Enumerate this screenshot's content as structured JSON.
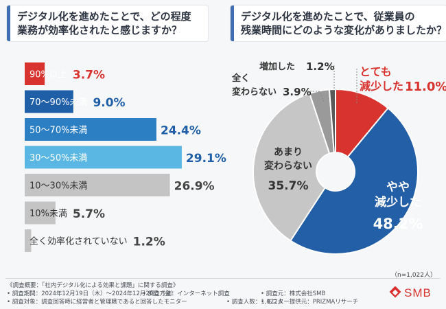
{
  "left_question": {
    "line1": "デジタル化を進めたことで、どの程度",
    "line2": "業務が効率化されたと感じますか？"
  },
  "right_question": {
    "line1": "デジタル化を進めたことで、従業員の",
    "line2": "残業時間にどのような変化がありましたか？"
  },
  "sample_size": "（n=1,022人）",
  "footer": {
    "title": "《調査概要：「社内デジタル化による効果と課題」に関する調査》",
    "period": "• 調査期間：2024年12月19日（木）〜2024年12月20日（金）",
    "target": "• 調査対象：調査回答時に経営者と管理職であると回答したモニター",
    "method": "• 調査方法：インターネット調査",
    "count": "• 調査人数：1,022人",
    "org": "• 調査元：株式会社SMB",
    "provider": "• モニター提供元：PRIZMAリサーチ"
  },
  "logo_text": "SMB",
  "chart_data": [
    {
      "type": "bar",
      "orientation": "horizontal",
      "title": "デジタル化を進めたことで、どの程度業務が効率化されたと感じますか？",
      "categories": [
        "90%以上",
        "70〜90%未満",
        "50〜70%未満",
        "30〜50%未満",
        "10〜30%未満",
        "10%未満",
        "全く効率化されていない"
      ],
      "values": [
        3.7,
        9.0,
        24.4,
        29.1,
        26.9,
        5.7,
        1.2
      ],
      "value_labels": [
        "3.7%",
        "9.0%",
        "24.4%",
        "29.1%",
        "26.9%",
        "5.7%",
        "1.2%"
      ],
      "colors": [
        "#d8332f",
        "#1f5fa8",
        "#2d7fc4",
        "#5ab7e3",
        "#c4c4c4",
        "#c4c4c4",
        "#c4c4c4"
      ],
      "xlim": [
        0,
        30
      ],
      "grid": false
    },
    {
      "type": "pie",
      "style": "donut",
      "title": "デジタル化を進めたことで、従業員の残業時間にどのような変化がありましたか？",
      "slices": [
        {
          "label": "とても減少した",
          "value": 11.0,
          "value_label": "11.0%",
          "color": "#d8332f"
        },
        {
          "label": "やや減少した",
          "value": 48.2,
          "value_label": "48.2%",
          "color": "#235fa6"
        },
        {
          "label": "あまり変わらない",
          "value": 35.7,
          "value_label": "35.7%",
          "color": "#c6c6c6"
        },
        {
          "label": "全く変わらない",
          "value": 3.9,
          "value_label": "3.9%",
          "color": "#9a9a9a"
        },
        {
          "label": "増加した",
          "value": 1.2,
          "value_label": "1.2%",
          "color": "#595959"
        }
      ]
    }
  ]
}
